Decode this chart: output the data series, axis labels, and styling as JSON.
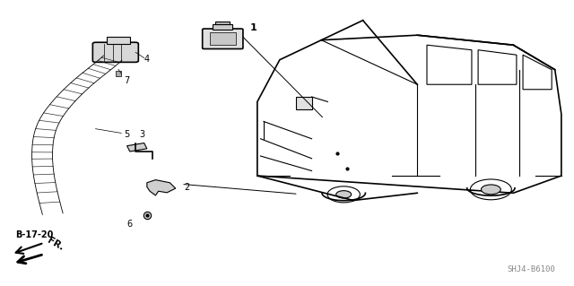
{
  "bg_color": "#ffffff",
  "line_color": "#000000",
  "fig_width": 6.4,
  "fig_height": 3.19,
  "dpi": 100,
  "diagram_code": "SHJ4-B6100",
  "ref_label": "B-17-20",
  "part_labels": [
    "1",
    "2",
    "3",
    "4",
    "5",
    "6",
    "7"
  ]
}
